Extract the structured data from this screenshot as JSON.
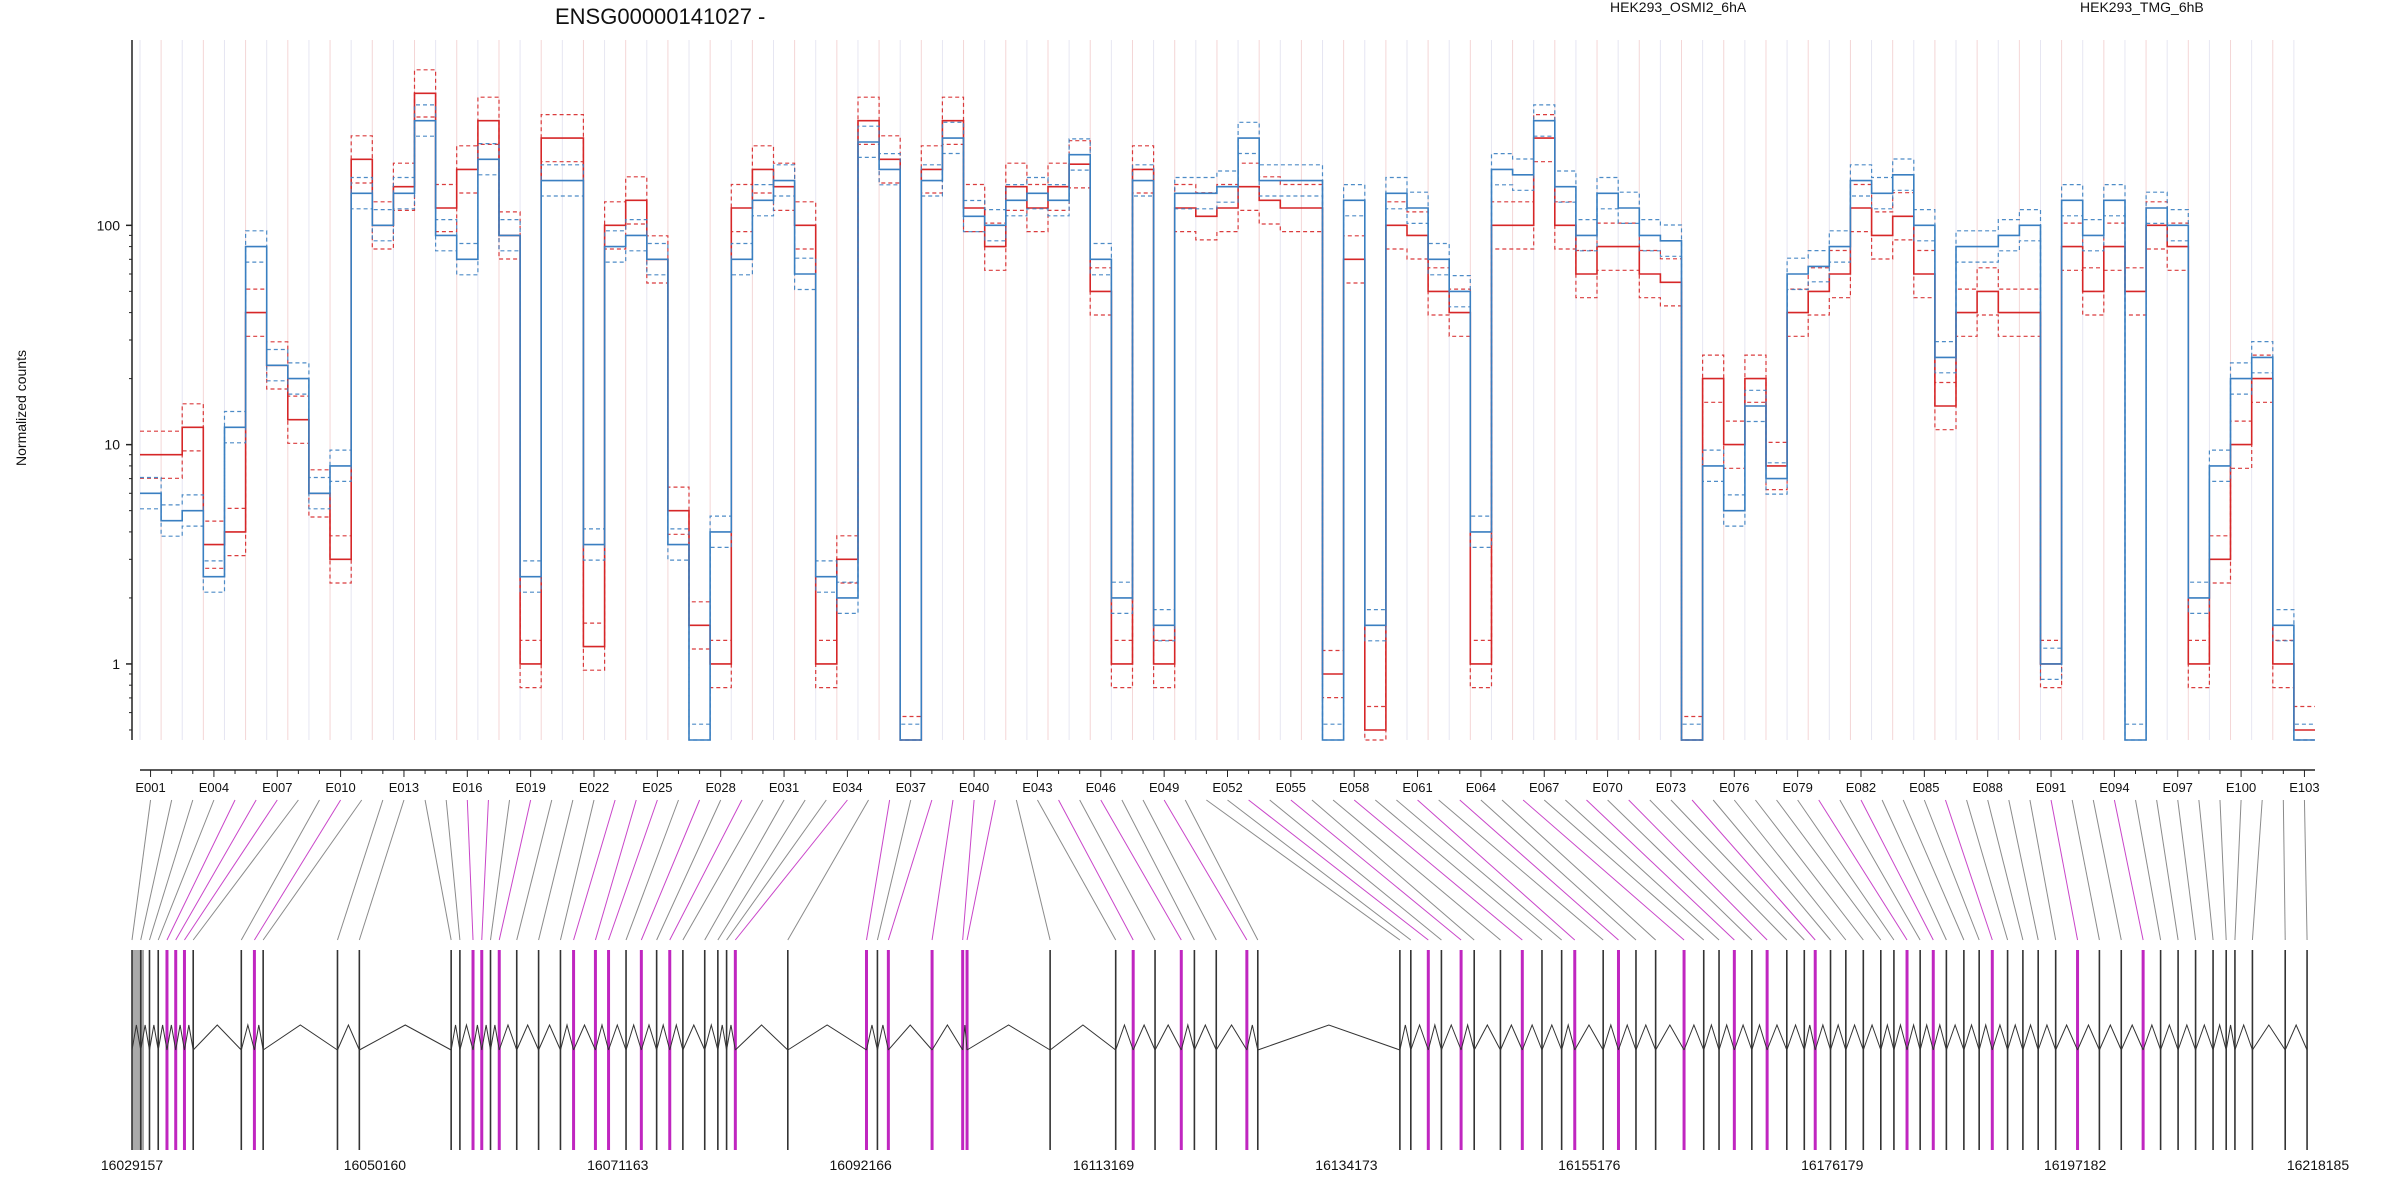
{
  "chart_data": {
    "type": "line",
    "title": "ENSG00000141027 -",
    "ylabel": "Normalized counts",
    "y_scale": "log",
    "y_ticks": [
      "1",
      "10",
      "100"
    ],
    "grid": true,
    "legend_placement": "top-right",
    "series": [
      {
        "name": "HEK293_OSMI2_6hA",
        "color": "#d62728",
        "replicates": 3,
        "values": [
          9.0,
          9.0,
          12.0,
          3.5,
          4.0,
          40.0,
          23.0,
          13.0,
          6.0,
          3.0,
          200.0,
          100.0,
          150.0,
          400.0,
          120.0,
          180.0,
          300.0,
          90.0,
          1.0,
          250.0,
          250.0,
          1.2,
          100.0,
          130.0,
          70.0,
          5.0,
          1.5,
          1.0,
          120.0,
          180.0,
          150.0,
          100.0,
          1.0,
          3.0,
          300.0,
          200.0,
          0.45,
          180.0,
          300.0,
          120.0,
          80.0,
          150.0,
          120.0,
          150.0,
          190.0,
          50.0,
          1.0,
          180.0,
          1.0,
          120.0,
          110.0,
          120.0,
          150.0,
          130.0,
          120.0,
          120.0,
          0.9,
          70.0,
          0.5,
          100.0,
          90.0,
          50.0,
          40.0,
          1.0,
          100.0,
          100.0,
          250.0,
          100.0,
          60.0,
          80.0,
          80.0,
          60.0,
          55.0,
          0.45,
          20.0,
          10.0,
          20.0,
          8.0,
          40.0,
          50.0,
          60.0,
          120.0,
          90.0,
          110.0,
          60.0,
          15.0,
          40.0,
          50.0,
          40.0,
          40.0,
          1.0,
          80.0,
          50.0,
          80.0,
          50.0,
          100.0,
          80.0,
          1.0,
          3.0,
          10.0,
          20.0,
          1.0,
          0.5
        ]
      },
      {
        "name": "HEK293_TMG_6hB",
        "color": "#3a7fc1",
        "replicates": 3,
        "values": [
          6.0,
          4.5,
          5.0,
          2.5,
          12.0,
          80.0,
          23.0,
          20.0,
          6.0,
          8.0,
          140.0,
          100.0,
          140.0,
          300.0,
          90.0,
          70.0,
          200.0,
          90.0,
          2.5,
          160.0,
          160.0,
          3.5,
          80.0,
          90.0,
          70.0,
          3.5,
          0.45,
          4.0,
          70.0,
          130.0,
          160.0,
          60.0,
          2.5,
          2.0,
          240.0,
          180.0,
          0.45,
          160.0,
          250.0,
          110.0,
          100.0,
          130.0,
          140.0,
          130.0,
          210.0,
          70.0,
          2.0,
          160.0,
          1.5,
          140.0,
          140.0,
          150.0,
          250.0,
          160.0,
          160.0,
          160.0,
          0.45,
          130.0,
          1.5,
          140.0,
          120.0,
          70.0,
          50.0,
          4.0,
          180.0,
          170.0,
          300.0,
          150.0,
          90.0,
          140.0,
          120.0,
          90.0,
          85.0,
          0.45,
          8.0,
          5.0,
          15.0,
          7.0,
          60.0,
          65.0,
          80.0,
          160.0,
          140.0,
          170.0,
          100.0,
          25.0,
          80.0,
          80.0,
          90.0,
          100.0,
          1.0,
          130.0,
          90.0,
          130.0,
          0.45,
          120.0,
          100.0,
          2.0,
          8.0,
          20.0,
          25.0,
          1.5,
          0.45
        ]
      }
    ],
    "x_categories": [
      "E001",
      "E002",
      "E003",
      "E004",
      "E005",
      "E006",
      "E007",
      "E008",
      "E009",
      "E010",
      "E011",
      "E012",
      "E013",
      "E014",
      "E015",
      "E016",
      "E017",
      "E018",
      "E019",
      "E020",
      "E021",
      "E022",
      "E023",
      "E024",
      "E025",
      "E026",
      "E027",
      "E028",
      "E029",
      "E030",
      "E031",
      "E032",
      "E033",
      "E034",
      "E035",
      "E036",
      "E037",
      "E038",
      "E039",
      "E040",
      "E041",
      "E042",
      "E043",
      "E044",
      "E045",
      "E046",
      "E047",
      "E048",
      "E049",
      "E050",
      "E051",
      "E052",
      "E053",
      "E054",
      "E055",
      "E056",
      "E057",
      "E058",
      "E059",
      "E060",
      "E061",
      "E062",
      "E063",
      "E064",
      "E065",
      "E066",
      "E067",
      "E068",
      "E069",
      "E070",
      "E071",
      "E072",
      "E073",
      "E074",
      "E075",
      "E076",
      "E077",
      "E078",
      "E079",
      "E080",
      "E081",
      "E082",
      "E083",
      "E084",
      "E085",
      "E086",
      "E087",
      "E088",
      "E089",
      "E090",
      "E091",
      "E092",
      "E093",
      "E094",
      "E095",
      "E096",
      "E097",
      "E098",
      "E099",
      "E100",
      "E101",
      "E102",
      "E103"
    ],
    "x_tick_labels": [
      "E001",
      "E004",
      "E007",
      "E010",
      "E013",
      "E016",
      "E019",
      "E022",
      "E025",
      "E028",
      "E031",
      "E034",
      "E037",
      "E040",
      "E043",
      "E046",
      "E049",
      "E052",
      "E055",
      "E058",
      "E061",
      "E064",
      "E067",
      "E070",
      "E073",
      "E076",
      "E079",
      "E082",
      "E085",
      "E088",
      "E091",
      "E094",
      "E097",
      "E100",
      "E103"
    ],
    "gene_model": {
      "coordinate_start": 16029157,
      "coordinate_end": 16218185,
      "coordinate_ticks": [
        "16029157",
        "16050160",
        "16071163",
        "16092166",
        "16113169",
        "16134173",
        "16155176",
        "16176179",
        "16197182",
        "16218185"
      ],
      "highlight_color": "#c026c0",
      "exon_color": "#333333"
    }
  }
}
